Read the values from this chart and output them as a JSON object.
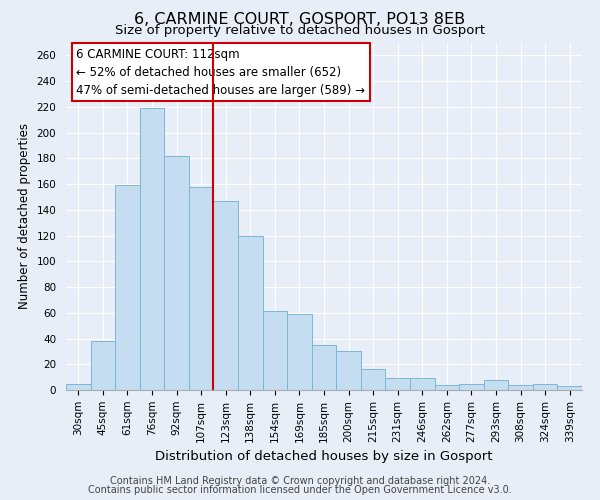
{
  "title": "6, CARMINE COURT, GOSPORT, PO13 8EB",
  "subtitle": "Size of property relative to detached houses in Gosport",
  "xlabel": "Distribution of detached houses by size in Gosport",
  "ylabel": "Number of detached properties",
  "categories": [
    "30sqm",
    "45sqm",
    "61sqm",
    "76sqm",
    "92sqm",
    "107sqm",
    "123sqm",
    "138sqm",
    "154sqm",
    "169sqm",
    "185sqm",
    "200sqm",
    "215sqm",
    "231sqm",
    "246sqm",
    "262sqm",
    "277sqm",
    "293sqm",
    "308sqm",
    "324sqm",
    "339sqm"
  ],
  "values": [
    5,
    38,
    159,
    219,
    182,
    158,
    147,
    120,
    61,
    59,
    35,
    30,
    16,
    9,
    9,
    4,
    5,
    8,
    4,
    5,
    3
  ],
  "bar_color": "#c5ddf0",
  "bar_edge_color": "#7eb5d6",
  "vline_x_index": 6,
  "vline_color": "#cc0000",
  "ylim": [
    0,
    270
  ],
  "yticks": [
    0,
    20,
    40,
    60,
    80,
    100,
    120,
    140,
    160,
    180,
    200,
    220,
    240,
    260
  ],
  "annotation_title": "6 CARMINE COURT: 112sqm",
  "annotation_line1": "← 52% of detached houses are smaller (652)",
  "annotation_line2": "47% of semi-detached houses are larger (589) →",
  "annotation_box_facecolor": "#ffffff",
  "annotation_box_edgecolor": "#cc0000",
  "footer_line1": "Contains HM Land Registry data © Crown copyright and database right 2024.",
  "footer_line2": "Contains public sector information licensed under the Open Government Licence v3.0.",
  "background_color": "#e8eef8",
  "grid_color": "#ffffff",
  "title_fontsize": 11.5,
  "subtitle_fontsize": 9.5,
  "xlabel_fontsize": 9.5,
  "ylabel_fontsize": 8.5,
  "tick_fontsize": 7.5,
  "annotation_fontsize": 8.5,
  "footer_fontsize": 7
}
